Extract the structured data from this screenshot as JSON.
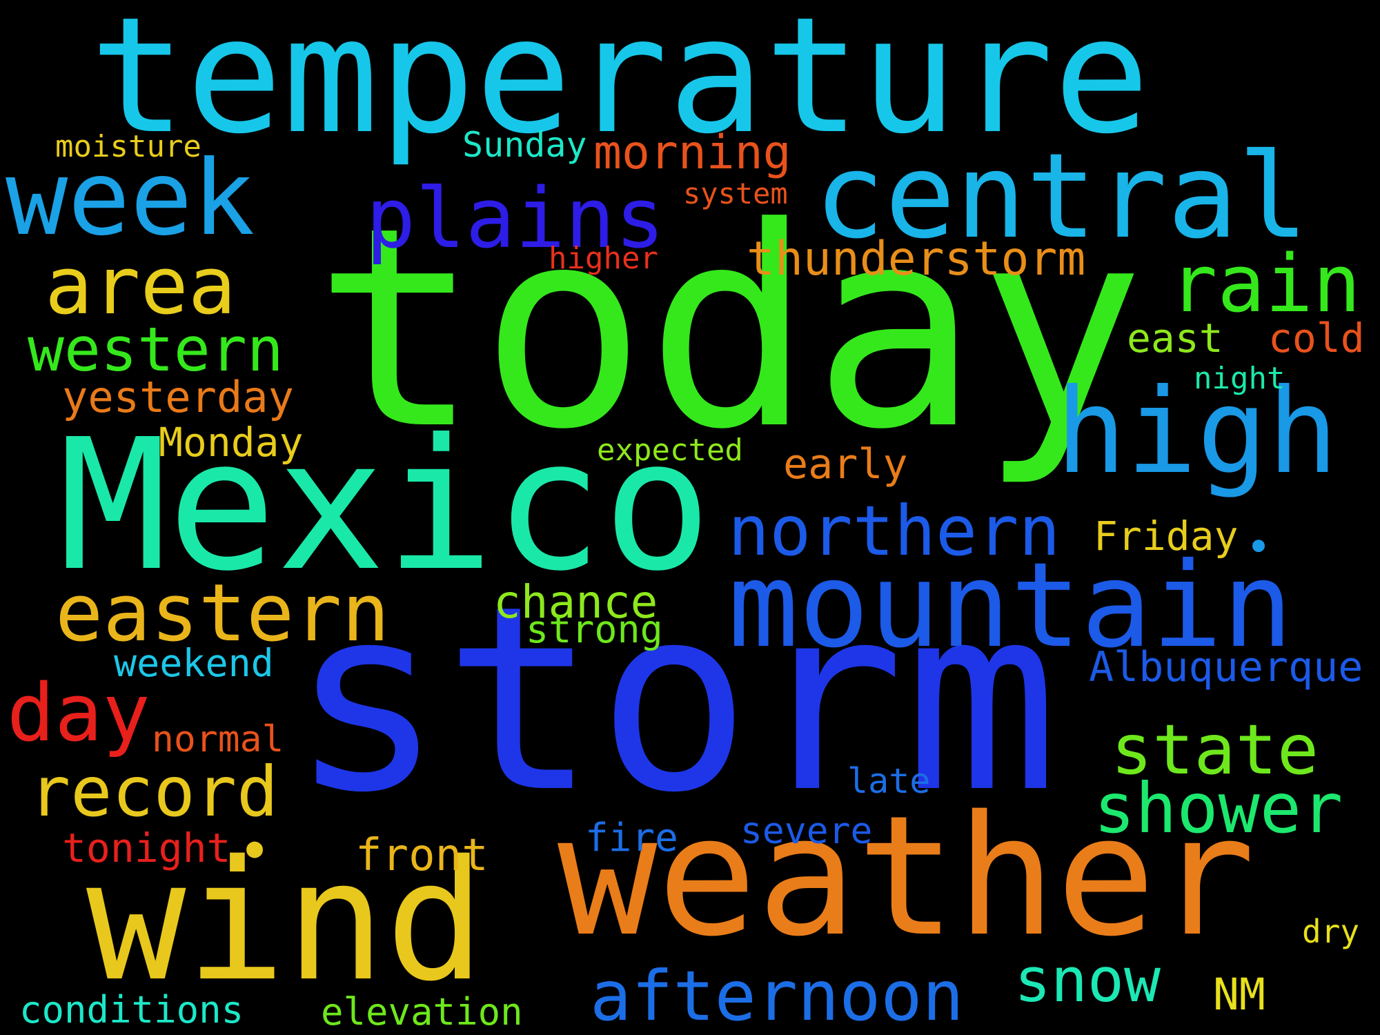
{
  "background": "#000000",
  "words": [
    {
      "text": "today",
      "color": "#35e81c"
    },
    {
      "text": "storm",
      "color": "#1e36e8"
    },
    {
      "text": "temperature",
      "color": "#17c7e9"
    },
    {
      "text": "Mexico",
      "color": "#1ae8a9"
    },
    {
      "text": "weather",
      "color": "#e97d19"
    },
    {
      "text": "wind",
      "color": "#e8c81d"
    },
    {
      "text": "mountain",
      "color": "#1c5ae8"
    },
    {
      "text": "central",
      "color": "#19b4e8"
    },
    {
      "text": "high",
      "color": "#1999e6"
    },
    {
      "text": "week",
      "color": "#1aa1e6"
    },
    {
      "text": "plains",
      "color": "#2d1de6"
    },
    {
      "text": "area",
      "color": "#e8cd1c"
    },
    {
      "text": "rain",
      "color": "#35e81c"
    },
    {
      "text": "eastern",
      "color": "#e9b51a"
    },
    {
      "text": "northern",
      "color": "#1c5ae8"
    },
    {
      "text": "day",
      "color": "#e8201c"
    },
    {
      "text": "afternoon",
      "color": "#1c6ee6"
    },
    {
      "text": "state",
      "color": "#6ee81c"
    },
    {
      "text": "shower",
      "color": "#1ce86e"
    },
    {
      "text": "record",
      "color": "#e8c81d"
    },
    {
      "text": "western",
      "color": "#35e81c"
    },
    {
      "text": "snow",
      "color": "#1ce8b5"
    },
    {
      "text": "thunderstorm",
      "color": "#e98e19"
    },
    {
      "text": "morning",
      "color": "#e8521c"
    },
    {
      "text": "yesterday",
      "color": "#e97a19"
    },
    {
      "text": "chance",
      "color": "#8ee81c"
    },
    {
      "text": "Albuquerque",
      "color": "#1c5ae8"
    },
    {
      "text": "front",
      "color": "#e9b51a"
    },
    {
      "text": "early",
      "color": "#e97d19"
    },
    {
      "text": "Monday",
      "color": "#e8cd1c"
    },
    {
      "text": "strong",
      "color": "#6ee81c"
    },
    {
      "text": "weekend",
      "color": "#1cc7e8"
    },
    {
      "text": "east",
      "color": "#8ee81c"
    },
    {
      "text": "cold",
      "color": "#e8521c"
    },
    {
      "text": "Friday",
      "color": "#e8cd1c"
    },
    {
      "text": "tonight",
      "color": "#e8201c"
    },
    {
      "text": "Sunday",
      "color": "#1ce8c8"
    },
    {
      "text": "normal",
      "color": "#e8521c"
    },
    {
      "text": "NM",
      "color": "#e8e01c"
    },
    {
      "text": "severe",
      "color": "#1c5ae8"
    },
    {
      "text": "fire",
      "color": "#1c6ee6"
    },
    {
      "text": "conditions",
      "color": "#1ce8c8"
    },
    {
      "text": "elevation",
      "color": "#6ee81c"
    },
    {
      "text": "late",
      "color": "#1c6ee6"
    },
    {
      "text": "moisture",
      "color": "#e8cd1c"
    },
    {
      "text": "expected",
      "color": "#8ee81c"
    },
    {
      "text": "night",
      "color": "#1ce8a9"
    },
    {
      "text": "system",
      "color": "#e8521c"
    },
    {
      "text": "higher",
      "color": "#e8301c"
    },
    {
      "text": "dry",
      "color": "#e8e01c"
    }
  ]
}
